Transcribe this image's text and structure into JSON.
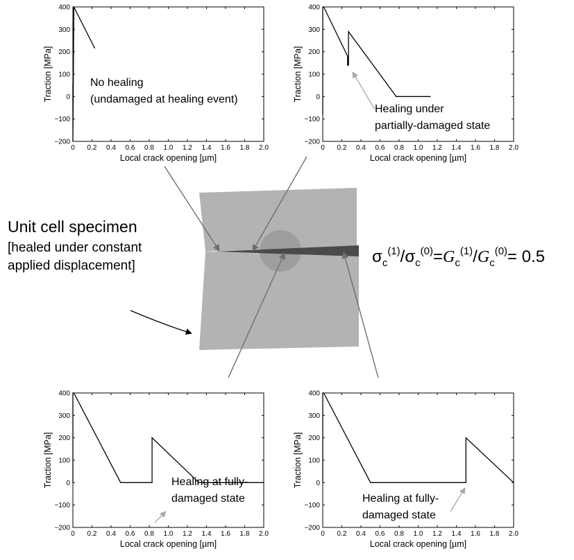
{
  "chart_data": [
    {
      "type": "line",
      "xlabel": "Local crack opening [µm]",
      "ylabel": "Traction [MPa]",
      "xlim": [
        0,
        2.0
      ],
      "ylim": [
        -200,
        400
      ],
      "xticks": [
        "0",
        "0.2",
        "0.4",
        "0.6",
        "0.8",
        "1.0",
        "1.2",
        "1.4",
        "1.6",
        "1.8",
        "2.0"
      ],
      "yticks": [
        "400",
        "300",
        "200",
        "100",
        "0",
        "−100",
        "−200"
      ],
      "series": [
        {
          "x": [
            0,
            0.0,
            0.0,
            0.01,
            0.23
          ],
          "y": [
            -200,
            60,
            -200,
            400,
            215
          ]
        }
      ],
      "annotation": [
        "No healing",
        "(undamaged at healing event)"
      ]
    },
    {
      "type": "line",
      "xlabel": "Local crack opening [µm]",
      "ylabel": "Traction [MPa]",
      "xlim": [
        0,
        2.0
      ],
      "ylim": [
        -200,
        400
      ],
      "xticks": [
        "0",
        "0.2",
        "0.4",
        "0.6",
        "0.8",
        "1.0",
        "1.2",
        "1.4",
        "1.6",
        "1.8",
        "2.0"
      ],
      "yticks": [
        "400",
        "300",
        "200",
        "100",
        "0",
        "−100",
        "−200"
      ],
      "series": [
        {
          "x": [
            0,
            0.0,
            0.01,
            0.26,
            0.26,
            0.27,
            0.27,
            0.77,
            1.13
          ],
          "y": [
            -80,
            400,
            400,
            180,
            140,
            140,
            290,
            0,
            0
          ]
        }
      ],
      "annotation": [
        "Healing under",
        "partially-damaged state"
      ]
    },
    {
      "type": "line",
      "xlabel": "Local crack opening [µm]",
      "ylabel": "Traction [MPa]",
      "xlim": [
        0,
        2.0
      ],
      "ylim": [
        -200,
        400
      ],
      "xticks": [
        "0",
        "0.2",
        "0.4",
        "0.6",
        "0.8",
        "1.0",
        "1.2",
        "1.4",
        "1.6",
        "1.8",
        "2.0"
      ],
      "yticks": [
        "400",
        "300",
        "200",
        "100",
        "0",
        "−100",
        "−200"
      ],
      "series": [
        {
          "x": [
            0,
            0.0,
            0.01,
            0.5,
            0.83,
            0.83,
            1.32,
            2.0
          ],
          "y": [
            0,
            400,
            400,
            0,
            0,
            200,
            0,
            0
          ]
        }
      ],
      "annotation": [
        "Healing at fully-",
        "damaged state"
      ]
    },
    {
      "type": "line",
      "xlabel": "Local crack opening [µm]",
      "ylabel": "Traction [MPa]",
      "xlim": [
        0,
        2.0
      ],
      "ylim": [
        -200,
        400
      ],
      "xticks": [
        "0",
        "0.2",
        "0.4",
        "0.6",
        "0.8",
        "1.0",
        "1.2",
        "1.4",
        "1.6",
        "1.8",
        "2.0"
      ],
      "yticks": [
        "400",
        "300",
        "200",
        "100",
        "0",
        "−100",
        "−200"
      ],
      "series": [
        {
          "x": [
            0,
            0.0,
            0.01,
            0.5,
            1.5,
            1.5,
            2.0
          ],
          "y": [
            0,
            400,
            400,
            0,
            0,
            200,
            0
          ]
        }
      ],
      "annotation": [
        "Healing at fully-",
        "damaged state"
      ]
    }
  ],
  "specimen": {
    "title": "Unit cell specimen",
    "subtitle_lines": [
      "[healed under constant",
      "applied displacement]"
    ]
  },
  "formula": {
    "sigma": "σ",
    "G": "G",
    "sub_c": "c",
    "sup1": "(1)",
    "sup0": "(0)",
    "slash": "/",
    "eq": "=",
    "value": "= 0.5"
  },
  "colors": {
    "specimen_fill": "#b3b3b3",
    "crack_fill": "#4a4a4a",
    "circle_fill": "#9e9e9e",
    "annotation_arrow": "#a8a8a8",
    "pointer_arrow": "#6e6e6e"
  }
}
